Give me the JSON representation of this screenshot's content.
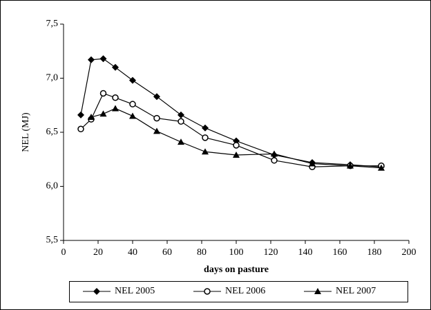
{
  "chart_data": {
    "type": "line",
    "x": [
      10,
      16,
      23,
      30,
      40,
      54,
      68,
      82,
      100,
      122,
      144,
      166,
      184
    ],
    "series": [
      {
        "name": "NEL 2005",
        "color": "#000000",
        "marker": "diamond",
        "values": [
          6.66,
          7.17,
          7.18,
          7.1,
          6.98,
          6.83,
          6.66,
          6.54,
          6.42,
          6.29,
          6.22,
          6.2,
          6.18
        ]
      },
      {
        "name": "NEL 2006",
        "color": "#000000",
        "marker": "circle",
        "values": [
          6.53,
          6.62,
          6.86,
          6.82,
          6.76,
          6.63,
          6.6,
          6.45,
          6.38,
          6.24,
          6.18,
          6.19,
          6.19
        ]
      },
      {
        "name": "NEL 2007",
        "color": "#000000",
        "marker": "triangle",
        "values": [
          null,
          6.64,
          6.67,
          6.72,
          6.65,
          6.51,
          6.41,
          6.32,
          6.29,
          6.3,
          6.21,
          6.19,
          6.17
        ]
      }
    ],
    "xlabel": "days on pasture",
    "ylabel": "NEL (MJ)",
    "xlim": [
      0,
      200
    ],
    "xticks": [
      0,
      20,
      40,
      60,
      80,
      100,
      120,
      140,
      160,
      180,
      200
    ],
    "ylim": [
      5.5,
      7.5
    ],
    "yticks": [
      {
        "value": 5.5,
        "label": "5,5"
      },
      {
        "value": 6.0,
        "label": "6,0"
      },
      {
        "value": 6.5,
        "label": "6,5"
      },
      {
        "value": 7.0,
        "label": "7,0"
      },
      {
        "value": 7.5,
        "label": "7,5"
      }
    ],
    "legend": "bottom"
  }
}
